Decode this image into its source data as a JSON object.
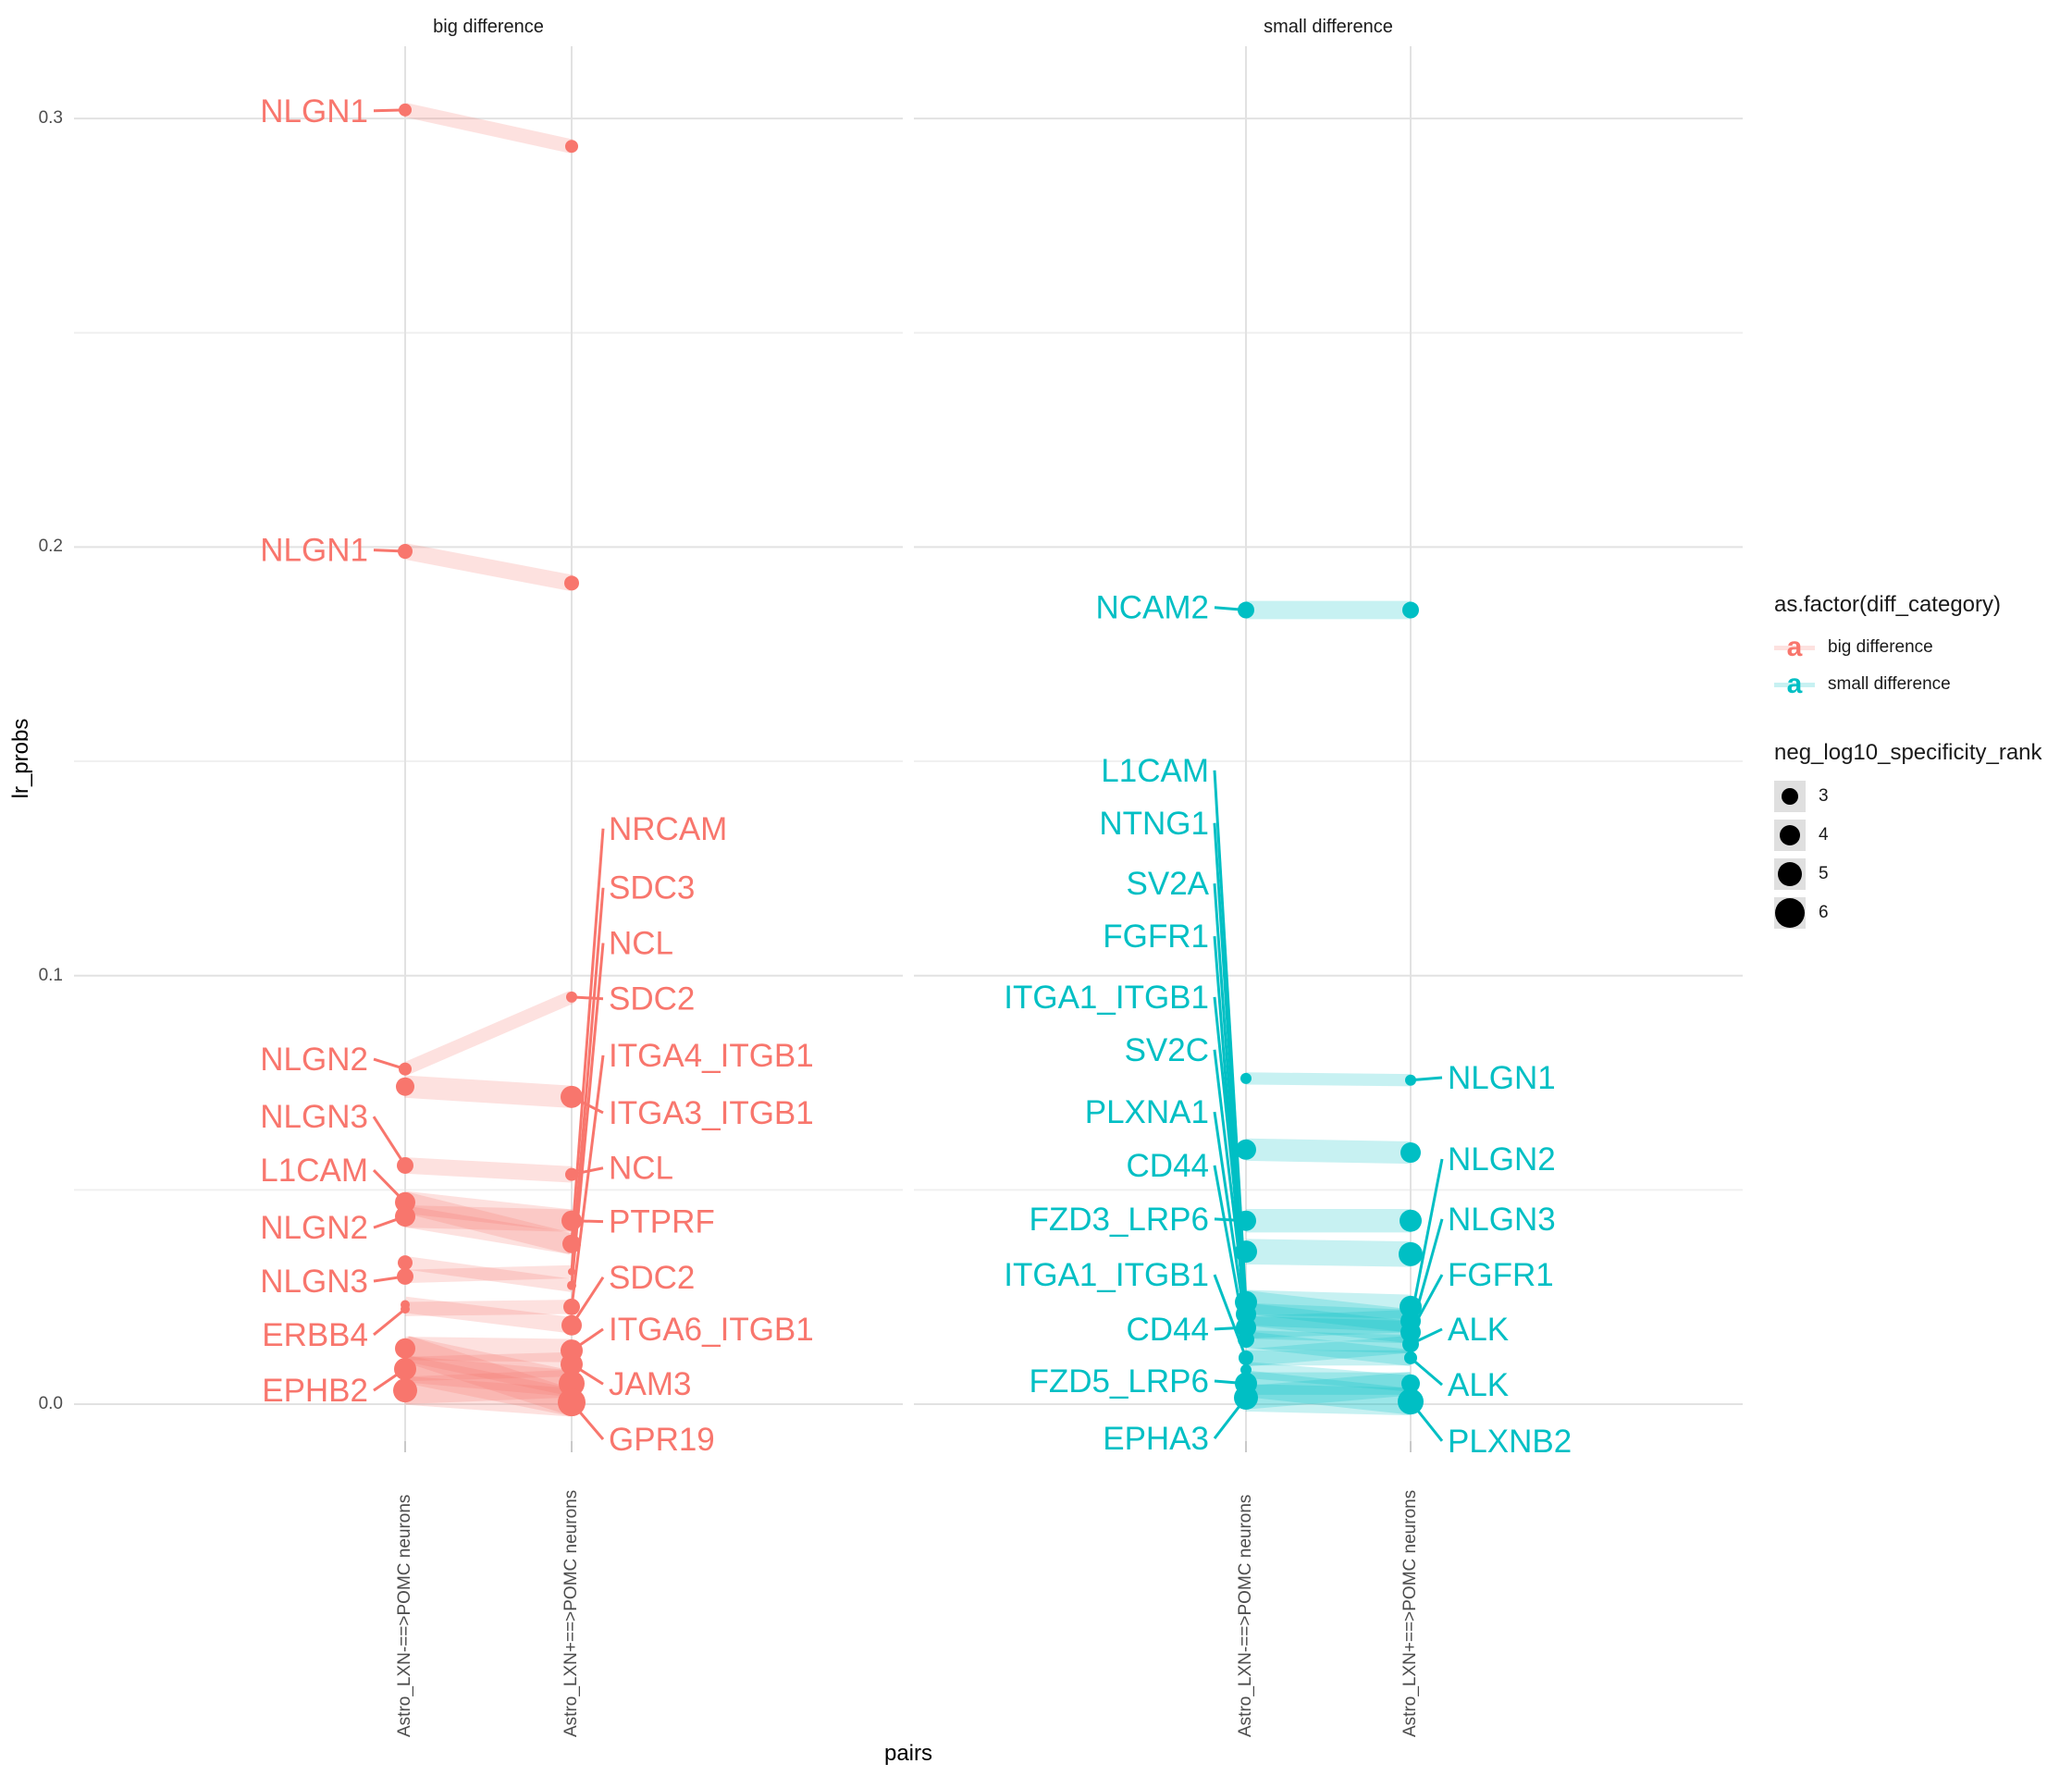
{
  "figure": {
    "strips": {
      "left": "big difference",
      "right": "small difference"
    },
    "y_axis": {
      "title": "lr_probs",
      "t0": "0.0",
      "t1": "0.1",
      "t2": "0.2",
      "t3": "0.3"
    },
    "x_axis": {
      "title": "pairs",
      "c0": "Astro_LXN-==>POMC neurons",
      "c1": "Astro_LXN+==>POMC neurons"
    },
    "legend": {
      "color_title": "as.factor(diff_category)",
      "glyph": "a",
      "color_items": [
        {
          "label": "big difference",
          "color": "#F8766D"
        },
        {
          "label": "small difference",
          "color": "#00BFC4"
        }
      ],
      "size_title": "neg_log10_specificity_rank",
      "size_items": [
        {
          "label": "3",
          "r": 9
        },
        {
          "label": "4",
          "r": 11
        },
        {
          "label": "5",
          "r": 13
        },
        {
          "label": "6",
          "r": 16
        }
      ]
    }
  },
  "chart_data": {
    "type": "slope",
    "title": "",
    "xlabel": "pairs",
    "ylabel": "lr_probs",
    "ylim": [
      -0.009,
      0.317
    ],
    "yticks": [
      0.0,
      0.1,
      0.2,
      0.3
    ],
    "categories": [
      "Astro_LXN-==>POMC neurons",
      "Astro_LXN+==>POMC neurons"
    ],
    "legend_sizes": [
      3,
      4,
      5,
      6
    ],
    "facets": [
      {
        "name": "big difference",
        "color": "#F8766D",
        "points_left": [
          {
            "v": 0.302,
            "r": 7
          },
          {
            "v": 0.199,
            "r": 8
          },
          {
            "v": 0.0782,
            "r": 7
          },
          {
            "v": 0.0741,
            "r": 10
          },
          {
            "v": 0.0557,
            "r": 9
          },
          {
            "v": 0.0471,
            "r": 11
          },
          {
            "v": 0.0438,
            "r": 11
          },
          {
            "v": 0.033,
            "r": 8
          },
          {
            "v": 0.0298,
            "r": 9
          },
          {
            "v": 0.0232,
            "r": 5
          },
          {
            "v": 0.0222,
            "r": 5
          },
          {
            "v": 0.013,
            "r": 11
          },
          {
            "v": 0.0082,
            "r": 12
          },
          {
            "v": 0.0032,
            "r": 13
          }
        ],
        "points_right": [
          {
            "v": 0.2935,
            "r": 7
          },
          {
            "v": 0.1916,
            "r": 8
          },
          {
            "v": 0.095,
            "r": 6
          },
          {
            "v": 0.0717,
            "r": 12
          },
          {
            "v": 0.0536,
            "r": 7
          },
          {
            "v": 0.0428,
            "r": 11
          },
          {
            "v": 0.0374,
            "r": 10
          },
          {
            "v": 0.0309,
            "r": 4
          },
          {
            "v": 0.0277,
            "r": 5
          },
          {
            "v": 0.0227,
            "r": 9
          },
          {
            "v": 0.0184,
            "r": 11
          },
          {
            "v": 0.0125,
            "r": 12
          },
          {
            "v": 0.0093,
            "r": 12
          },
          {
            "v": 0.0048,
            "r": 14
          },
          {
            "v": 0.0004,
            "r": 15
          }
        ],
        "links": [
          [
            0.302,
            0.2935
          ],
          [
            0.199,
            0.1916
          ],
          [
            0.0782,
            0.095
          ],
          [
            0.0741,
            0.0717
          ],
          [
            0.0557,
            0.0536
          ],
          [
            0.0471,
            0.0428
          ],
          [
            0.0471,
            0.0374
          ],
          [
            0.0438,
            0.0374
          ],
          [
            0.0438,
            0.0428
          ],
          [
            0.033,
            0.0277
          ],
          [
            0.0298,
            0.0309
          ],
          [
            0.0232,
            0.0184
          ],
          [
            0.0222,
            0.0227
          ],
          [
            0.013,
            0.0125
          ],
          [
            0.013,
            0.0048
          ],
          [
            0.013,
            0.0004
          ],
          [
            0.0082,
            0.0093
          ],
          [
            0.0082,
            0.0048
          ],
          [
            0.0082,
            0.0004
          ],
          [
            0.0032,
            0.0048
          ],
          [
            0.0032,
            0.0004
          ]
        ],
        "labels": [
          {
            "text": "NLGN1",
            "side": "left",
            "lv": 0.3018,
            "tv": 0.302
          },
          {
            "text": "NLGN1",
            "side": "left",
            "lv": 0.1993,
            "tv": 0.199
          },
          {
            "text": "NLGN2",
            "side": "left",
            "lv": 0.0805,
            "tv": 0.0782
          },
          {
            "text": "NLGN3",
            "side": "left",
            "lv": 0.0671,
            "tv": 0.0557
          },
          {
            "text": "L1CAM",
            "side": "left",
            "lv": 0.0546,
            "tv": 0.0471
          },
          {
            "text": "NLGN2",
            "side": "left",
            "lv": 0.0412,
            "tv": 0.0438
          },
          {
            "text": "NLGN3",
            "side": "left",
            "lv": 0.0287,
            "tv": 0.0298
          },
          {
            "text": "ERBB4",
            "side": "left",
            "lv": 0.0162,
            "tv": 0.0222
          },
          {
            "text": "EPHB2",
            "side": "left",
            "lv": 0.0032,
            "tv": 0.0082
          },
          {
            "text": "NRCAM",
            "side": "right",
            "lv": 0.1343,
            "tv": 0.0374
          },
          {
            "text": "SDC3",
            "side": "right",
            "lv": 0.1205,
            "tv": 0.0309
          },
          {
            "text": "NCL",
            "side": "right",
            "lv": 0.1076,
            "tv": 0.0277
          },
          {
            "text": "SDC2",
            "side": "right",
            "lv": 0.0946,
            "tv": 0.095
          },
          {
            "text": "ITGA4_ITGB1",
            "side": "right",
            "lv": 0.0814,
            "tv": 0.0227
          },
          {
            "text": "ITGA3_ITGB1",
            "side": "right",
            "lv": 0.068,
            "tv": 0.0717
          },
          {
            "text": "NCL",
            "side": "right",
            "lv": 0.0551,
            "tv": 0.0536
          },
          {
            "text": "PTPRF",
            "side": "right",
            "lv": 0.0426,
            "tv": 0.0428
          },
          {
            "text": "SDC2",
            "side": "right",
            "lv": 0.0296,
            "tv": 0.0184
          },
          {
            "text": "ITGA6_ITGB1",
            "side": "right",
            "lv": 0.0175,
            "tv": 0.0125
          },
          {
            "text": "JAM3",
            "side": "right",
            "lv": 0.0047,
            "tv": 0.0093
          },
          {
            "text": "GPR19",
            "side": "right",
            "lv": -0.0082,
            "tv": 0.0004
          }
        ]
      },
      {
        "name": "small difference",
        "color": "#00BFC4",
        "points_left": [
          {
            "v": 0.1853,
            "r": 9
          },
          {
            "v": 0.076,
            "r": 6
          },
          {
            "v": 0.0594,
            "r": 11
          },
          {
            "v": 0.0428,
            "r": 11
          },
          {
            "v": 0.0356,
            "r": 12
          },
          {
            "v": 0.0238,
            "r": 12
          },
          {
            "v": 0.021,
            "r": 11
          },
          {
            "v": 0.0179,
            "r": 11
          },
          {
            "v": 0.0151,
            "r": 9
          },
          {
            "v": 0.0108,
            "r": 8
          },
          {
            "v": 0.008,
            "r": 6
          },
          {
            "v": 0.0048,
            "r": 12
          },
          {
            "v": 0.0015,
            "r": 13
          }
        ],
        "points_right": [
          {
            "v": 0.1853,
            "r": 9
          },
          {
            "v": 0.0756,
            "r": 6
          },
          {
            "v": 0.0587,
            "r": 11
          },
          {
            "v": 0.0428,
            "r": 12
          },
          {
            "v": 0.035,
            "r": 13
          },
          {
            "v": 0.0227,
            "r": 12
          },
          {
            "v": 0.0194,
            "r": 11
          },
          {
            "v": 0.0168,
            "r": 11
          },
          {
            "v": 0.014,
            "r": 9
          },
          {
            "v": 0.0108,
            "r": 7
          },
          {
            "v": 0.0048,
            "r": 10
          },
          {
            "v": 0.0006,
            "r": 14
          }
        ],
        "links": [
          [
            0.1853,
            0.1853
          ],
          [
            0.076,
            0.0756
          ],
          [
            0.0594,
            0.0587
          ],
          [
            0.0428,
            0.0428
          ],
          [
            0.0356,
            0.035
          ],
          [
            0.0238,
            0.0227
          ],
          [
            0.0238,
            0.0194
          ],
          [
            0.021,
            0.0194
          ],
          [
            0.021,
            0.0168
          ],
          [
            0.0179,
            0.0168
          ],
          [
            0.0179,
            0.0194
          ],
          [
            0.0151,
            0.014
          ],
          [
            0.0151,
            0.0108
          ],
          [
            0.0108,
            0.0108
          ],
          [
            0.0108,
            0.014
          ],
          [
            0.008,
            0.0048
          ],
          [
            0.0048,
            0.0048
          ],
          [
            0.0048,
            0.0006
          ],
          [
            0.0015,
            0.0006
          ],
          [
            0.0015,
            0.0048
          ]
        ],
        "labels": [
          {
            "text": "NCAM2",
            "side": "left",
            "lv": 0.1859,
            "tv": 0.1853
          },
          {
            "text": "L1CAM",
            "side": "left",
            "lv": 0.1479,
            "tv": 0.0238
          },
          {
            "text": "NTNG1",
            "side": "left",
            "lv": 0.1356,
            "tv": 0.021
          },
          {
            "text": "SV2A",
            "side": "left",
            "lv": 0.1215,
            "tv": 0.0179
          },
          {
            "text": "FGFR1",
            "side": "left",
            "lv": 0.1092,
            "tv": 0.0151
          },
          {
            "text": "ITGA1_ITGB1",
            "side": "left",
            "lv": 0.095,
            "tv": 0.0238
          },
          {
            "text": "SV2C",
            "side": "left",
            "lv": 0.0827,
            "tv": 0.021
          },
          {
            "text": "PLXNA1",
            "side": "left",
            "lv": 0.0682,
            "tv": 0.0179
          },
          {
            "text": "CD44",
            "side": "left",
            "lv": 0.0557,
            "tv": 0.0151
          },
          {
            "text": "FZD3_LRP6",
            "side": "left",
            "lv": 0.0432,
            "tv": 0.0428
          },
          {
            "text": "ITGA1_ITGB1",
            "side": "left",
            "lv": 0.0302,
            "tv": 0.0108
          },
          {
            "text": "CD44",
            "side": "left",
            "lv": 0.0175,
            "tv": 0.0179
          },
          {
            "text": "FZD5_LRP6",
            "side": "left",
            "lv": 0.0054,
            "tv": 0.0048
          },
          {
            "text": "EPHA3",
            "side": "left",
            "lv": -0.008,
            "tv": 0.0015
          },
          {
            "text": "NLGN1",
            "side": "right",
            "lv": 0.0762,
            "tv": 0.0756
          },
          {
            "text": "NLGN2",
            "side": "right",
            "lv": 0.0572,
            "tv": 0.0194
          },
          {
            "text": "NLGN3",
            "side": "right",
            "lv": 0.0432,
            "tv": 0.0168
          },
          {
            "text": "FGFR1",
            "side": "right",
            "lv": 0.0302,
            "tv": 0.0168
          },
          {
            "text": "ALK",
            "side": "right",
            "lv": 0.0175,
            "tv": 0.014
          },
          {
            "text": "ALK",
            "side": "right",
            "lv": 0.0045,
            "tv": 0.0108
          },
          {
            "text": "PLXNB2",
            "side": "right",
            "lv": -0.0086,
            "tv": 0.0006
          }
        ]
      }
    ]
  }
}
